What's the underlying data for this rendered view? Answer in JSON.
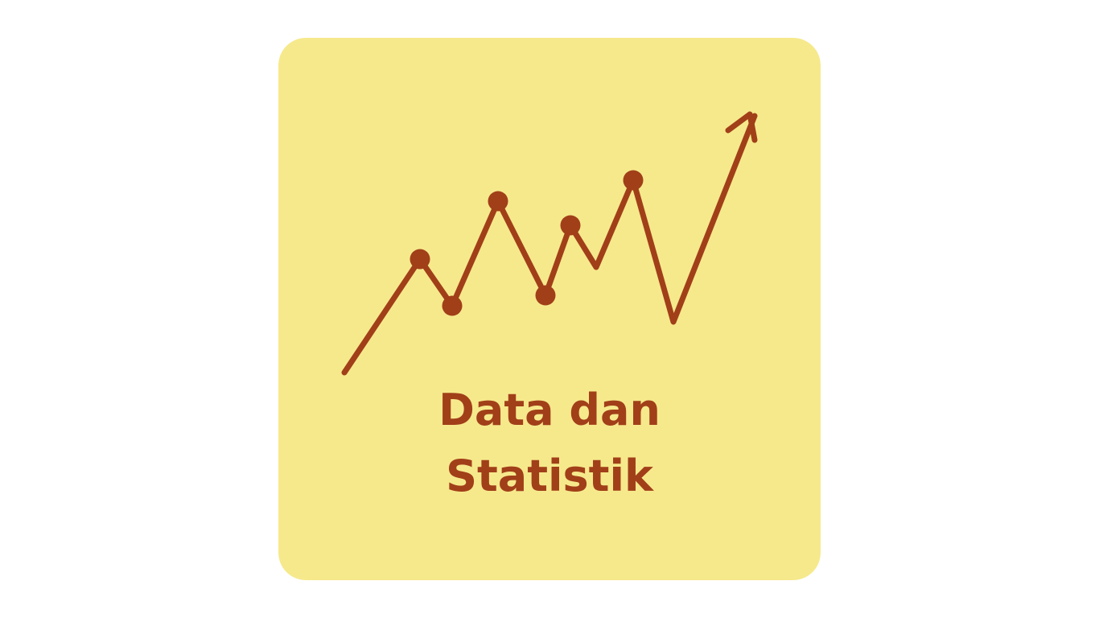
{
  "colors": {
    "page_background": "#ffffff",
    "card_background": "#f6e98c",
    "accent": "#a13f19"
  },
  "icon": "trending-line-with-arrow-icon",
  "title": {
    "line1": "Data dan",
    "line2": "Statistik"
  }
}
